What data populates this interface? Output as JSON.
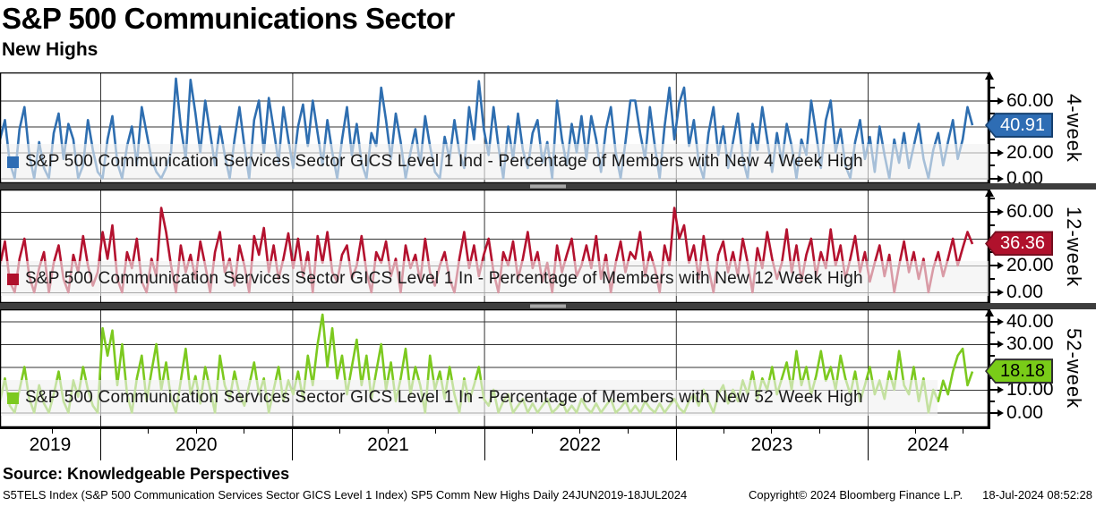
{
  "header": {
    "title": "S&P 500 Communications Sector",
    "subtitle": "New Highs"
  },
  "source_line": "Source: Knowledgeable Perspectives",
  "footer": {
    "left": "S5TELS Index (S&P 500 Communication Services Sector GICS Level 1 Index) SP5 Comm New Highs  Daily 24JUN2019-18JUL2024",
    "copyright": "Copyright© 2024 Bloomberg Finance L.P.",
    "timestamp": "18-Jul-2024 08:52:28"
  },
  "xaxis": {
    "start_date": "24JUN2019",
    "end_date": "18JUL2024",
    "years": [
      "2019",
      "2020",
      "2021",
      "2022",
      "2023",
      "2024"
    ]
  },
  "chart_data": [
    {
      "type": "line",
      "panel_label": "4-week",
      "legend": "S&P 500 Communication Services Sector GICS Level 1 Ind - Percentage of Members with New 4 Week High",
      "color": "#2e6eb0",
      "last_value": 40.91,
      "badge": {
        "text": "40.91",
        "fill": "#2e6db4",
        "border": "#16406f",
        "text_color": "#ffffff"
      },
      "ylim": [
        -3.8,
        81.7
      ],
      "ytick_values": [
        0,
        20,
        40,
        60
      ],
      "ytick_labels": [
        "0.00",
        "20.00",
        "40.00",
        "60.00"
      ],
      "minor_ticks": [
        10,
        30,
        50,
        70
      ],
      "grid": true,
      "legend_position": "bottom-left-inside",
      "values": [
        30,
        45,
        12,
        0,
        38,
        55,
        18,
        0,
        28,
        8,
        0,
        35,
        50,
        15,
        42,
        30,
        0,
        10,
        45,
        22,
        5,
        0,
        30,
        48,
        12,
        0,
        25,
        40,
        10,
        55,
        35,
        15,
        5,
        0,
        8,
        20,
        77,
        40,
        15,
        76,
        50,
        20,
        60,
        35,
        10,
        40,
        18,
        0,
        30,
        55,
        25,
        0,
        45,
        60,
        20,
        62,
        38,
        12,
        55,
        30,
        8,
        40,
        57,
        25,
        60,
        35,
        10,
        45,
        20,
        0,
        30,
        55,
        18,
        42,
        12,
        0,
        35,
        25,
        70,
        45,
        15,
        50,
        28,
        0,
        20,
        38,
        10,
        48,
        25,
        5,
        0,
        32,
        15,
        45,
        20,
        8,
        55,
        30,
        75,
        38,
        18,
        55,
        25,
        0,
        40,
        15,
        50,
        22,
        8,
        35,
        45,
        12,
        28,
        0,
        60,
        30,
        10,
        42,
        20,
        48,
        15,
        48,
        30,
        5,
        38,
        55,
        20,
        0,
        28,
        60,
        60,
        35,
        15,
        55,
        25,
        0,
        40,
        70,
        30,
        58,
        70,
        25,
        45,
        12,
        0,
        35,
        55,
        18,
        40,
        8,
        28,
        50,
        15,
        0,
        42,
        22,
        55,
        30,
        5,
        35,
        12,
        42,
        25,
        0,
        30,
        18,
        60,
        35,
        8,
        45,
        60,
        20,
        38,
        10,
        0,
        28,
        45,
        15,
        32,
        5,
        40,
        18,
        0,
        30,
        12,
        35,
        8,
        25,
        42,
        15,
        0,
        22,
        35,
        10,
        28,
        45,
        15,
        30,
        55,
        41
      ]
    },
    {
      "type": "line",
      "panel_label": "12-week",
      "legend": "S&P 500 Communication Services Sector GICS Level 1 In - Percentage of Members with New 12 Week High",
      "color": "#b4122f",
      "last_value": 36.36,
      "badge": {
        "text": "36.36",
        "fill": "#b0112c",
        "border": "#750f20",
        "text_color": "#ffffff"
      },
      "ylim": [
        -7.7,
        76.7
      ],
      "ytick_values": [
        0,
        20,
        40,
        60
      ],
      "ytick_labels": [
        "0.00",
        "20.00",
        "40.00",
        "60.00"
      ],
      "minor_ticks": [
        10,
        30,
        50,
        70
      ],
      "grid": true,
      "legend_position": "bottom-left-inside",
      "values": [
        20,
        38,
        8,
        0,
        25,
        40,
        12,
        0,
        18,
        30,
        0,
        22,
        35,
        10,
        0,
        28,
        15,
        42,
        20,
        5,
        15,
        45,
        25,
        50,
        10,
        0,
        30,
        18,
        40,
        8,
        0,
        25,
        12,
        63,
        45,
        20,
        0,
        35,
        15,
        28,
        10,
        38,
        20,
        0,
        30,
        45,
        15,
        25,
        5,
        35,
        20,
        0,
        42,
        28,
        48,
        15,
        35,
        10,
        25,
        44,
        18,
        40,
        12,
        30,
        0,
        42,
        22,
        45,
        15,
        8,
        28,
        35,
        10,
        20,
        42,
        15,
        0,
        30,
        22,
        38,
        12,
        25,
        0,
        35,
        18,
        28,
        8,
        40,
        15,
        5,
        20,
        30,
        10,
        0,
        25,
        45,
        18,
        35,
        12,
        28,
        40,
        15,
        0,
        30,
        20,
        38,
        10,
        25,
        45,
        18,
        30,
        8,
        22,
        0,
        35,
        15,
        28,
        40,
        12,
        20,
        35,
        18,
        42,
        10,
        28,
        0,
        22,
        38,
        15,
        30,
        25,
        45,
        12,
        30,
        18,
        0,
        35,
        20,
        63,
        40,
        50,
        22,
        35,
        10,
        42,
        18,
        0,
        28,
        38,
        15,
        30,
        12,
        40,
        22,
        0,
        33,
        18,
        45,
        25,
        10,
        22,
        47,
        15,
        35,
        8,
        28,
        40,
        12,
        30,
        18,
        47,
        20,
        35,
        10,
        25,
        42,
        15,
        30,
        8,
        22,
        35,
        12,
        28,
        0,
        20,
        38,
        15,
        30,
        10,
        25,
        0,
        18,
        30,
        12,
        25,
        40,
        20,
        33,
        45,
        36
      ]
    },
    {
      "type": "line",
      "panel_label": "52-week",
      "legend": "S&P 500 Communication Services Sector GICS Level 1 In - Percentage of Members with New 52 Week High",
      "color": "#7cc91f",
      "last_value": 18.18,
      "badge": {
        "text": "18.18",
        "fill": "#79cc18",
        "border": "#2f2f2f",
        "text_color": "#000000"
      },
      "ylim": [
        -6.5,
        45.3
      ],
      "ytick_values": [
        0,
        10,
        20,
        30,
        40
      ],
      "ytick_labels": [
        "0.00",
        "10.00",
        "20.00",
        "30.00",
        "40.00"
      ],
      "minor_ticks": [
        5,
        15,
        25,
        35
      ],
      "grid": true,
      "legend_position": "bottom-left-inside",
      "values": [
        5,
        15,
        3,
        0,
        10,
        20,
        6,
        0,
        12,
        4,
        0,
        8,
        18,
        5,
        0,
        14,
        7,
        20,
        10,
        3,
        0,
        37,
        25,
        36,
        12,
        30,
        8,
        0,
        15,
        25,
        5,
        18,
        30,
        10,
        22,
        6,
        0,
        14,
        28,
        8,
        16,
        4,
        20,
        10,
        0,
        25,
        12,
        6,
        18,
        8,
        3,
        12,
        22,
        8,
        15,
        0,
        10,
        20,
        5,
        14,
        8,
        18,
        6,
        25,
        12,
        30,
        43,
        20,
        37,
        15,
        25,
        8,
        20,
        32,
        12,
        25,
        6,
        18,
        30,
        10,
        22,
        5,
        15,
        28,
        8,
        20,
        12,
        0,
        25,
        10,
        18,
        6,
        20,
        8,
        0,
        15,
        5,
        12,
        20,
        6,
        3,
        10,
        0,
        5,
        8,
        0,
        3,
        6,
        0,
        4,
        0,
        3,
        6,
        0,
        2,
        5,
        0,
        3,
        0,
        6,
        2,
        0,
        4,
        0,
        3,
        6,
        0,
        2,
        5,
        0,
        3,
        0,
        5,
        2,
        0,
        4,
        0,
        3,
        6,
        2,
        0,
        5,
        8,
        3,
        10,
        5,
        0,
        8,
        12,
        4,
        10,
        5,
        14,
        8,
        18,
        6,
        15,
        10,
        20,
        8,
        15,
        22,
        10,
        27,
        12,
        20,
        8,
        16,
        27,
        14,
        20,
        10,
        25,
        15,
        8,
        18,
        5,
        12,
        20,
        8,
        14,
        6,
        18,
        10,
        27,
        12,
        8,
        20,
        5,
        15,
        0,
        10,
        5,
        14,
        8,
        18,
        25,
        28,
        12,
        18
      ]
    }
  ]
}
